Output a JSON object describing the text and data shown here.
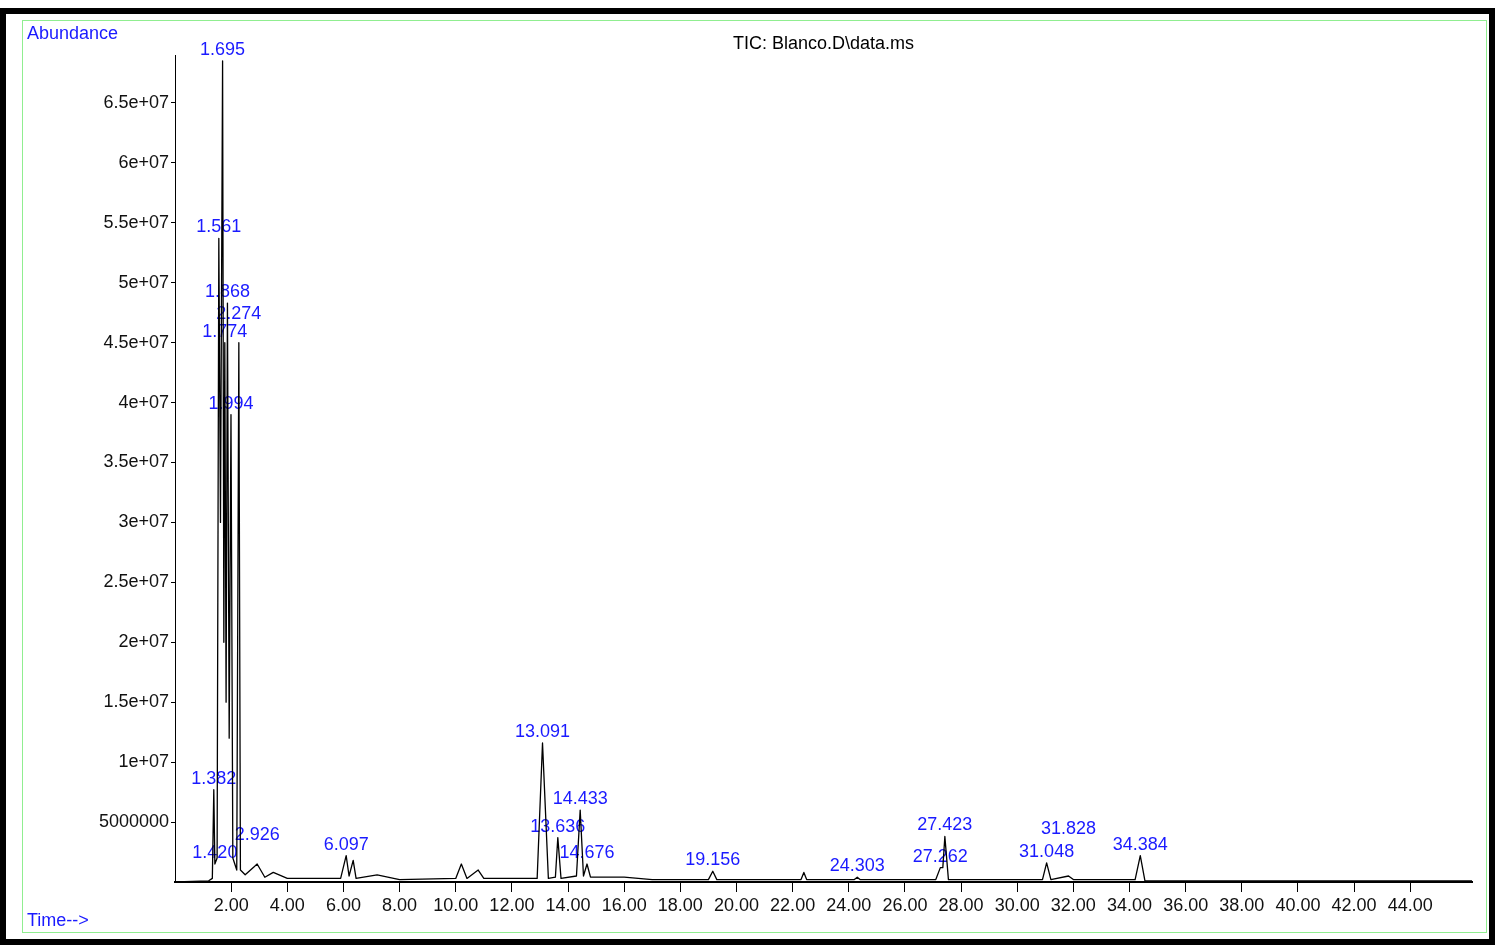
{
  "chart_data": {
    "type": "line",
    "title": "TIC: Blanco.D\\data.ms",
    "xlabel": "Time-->",
    "ylabel": "Abundance",
    "series": [
      {
        "color": "#000000",
        "x": [
          0.05,
          1.2,
          1.33,
          1.382,
          1.42,
          1.5,
          1.561,
          1.62,
          1.695,
          1.74,
          1.774,
          1.82,
          1.868,
          1.93,
          1.994,
          2.06,
          2.2,
          2.274,
          2.33,
          2.5,
          2.926,
          3.2,
          3.5,
          4.0,
          5.0,
          5.9,
          6.097,
          6.2,
          6.347,
          6.45,
          7.2,
          8.0,
          10.0,
          10.2,
          10.4,
          10.8,
          11.0,
          12.9,
          13.091,
          13.3,
          13.55,
          13.636,
          13.75,
          14.3,
          14.433,
          14.55,
          14.676,
          14.8,
          16.0,
          17.0,
          19.0,
          19.156,
          19.3,
          22.3,
          22.4,
          22.5,
          24.2,
          24.303,
          24.4,
          27.1,
          27.262,
          27.35,
          27.423,
          27.55,
          30.9,
          31.048,
          31.2,
          31.828,
          32.0,
          34.2,
          34.384,
          34.55,
          46.2
        ],
        "values": [
          0,
          100000,
          300000,
          7700000,
          1500000,
          2000000,
          53700000,
          30000000,
          68500000,
          20000000,
          45000000,
          15000000,
          48300000,
          12000000,
          39000000,
          2000000,
          1000000,
          45000000,
          1000000,
          600000,
          1500000,
          400000,
          800000,
          300000,
          300000,
          300000,
          2200000,
          500000,
          1800000,
          300000,
          600000,
          200000,
          300000,
          1500000,
          300000,
          1000000,
          300000,
          300000,
          11600000,
          300000,
          400000,
          3700000,
          300000,
          500000,
          6000000,
          500000,
          1500000,
          400000,
          400000,
          200000,
          200000,
          900000,
          200000,
          200000,
          800000,
          200000,
          200000,
          400000,
          200000,
          200000,
          1200000,
          1200000,
          3800000,
          200000,
          200000,
          1600000,
          200000,
          500000,
          200000,
          200000,
          2200000,
          100000,
          100000
        ]
      }
    ],
    "xlim": [
      0,
      46.2
    ],
    "ylim": [
      0,
      69000000
    ],
    "xticks": [
      {
        "value": 2,
        "label": "2.00"
      },
      {
        "value": 4,
        "label": "4.00"
      },
      {
        "value": 6,
        "label": "6.00"
      },
      {
        "value": 8,
        "label": "8.00"
      },
      {
        "value": 10,
        "label": "10.00"
      },
      {
        "value": 12,
        "label": "12.00"
      },
      {
        "value": 14,
        "label": "14.00"
      },
      {
        "value": 16,
        "label": "16.00"
      },
      {
        "value": 18,
        "label": "18.00"
      },
      {
        "value": 20,
        "label": "20.00"
      },
      {
        "value": 22,
        "label": "22.00"
      },
      {
        "value": 24,
        "label": "24.00"
      },
      {
        "value": 26,
        "label": "26.00"
      },
      {
        "value": 28,
        "label": "28.00"
      },
      {
        "value": 30,
        "label": "30.00"
      },
      {
        "value": 32,
        "label": "32.00"
      },
      {
        "value": 34,
        "label": "34.00"
      },
      {
        "value": 36,
        "label": "36.00"
      },
      {
        "value": 38,
        "label": "38.00"
      },
      {
        "value": 40,
        "label": "40.00"
      },
      {
        "value": 42,
        "label": "42.00"
      },
      {
        "value": 44,
        "label": "44.00"
      }
    ],
    "yticks": [
      5000000,
      {
        "value": 10000000,
        "label": "1e+07"
      },
      {
        "value": 15000000,
        "label": "1.5e+07"
      },
      {
        "value": 20000000,
        "label": "2e+07"
      },
      {
        "value": 25000000,
        "label": "2.5e+07"
      },
      {
        "value": 30000000,
        "label": "3e+07"
      },
      {
        "value": 35000000,
        "label": "3.5e+07"
      },
      {
        "value": 40000000,
        "label": "4e+07"
      },
      {
        "value": 45000000,
        "label": "4.5e+07"
      },
      {
        "value": 50000000,
        "label": "5e+07"
      },
      {
        "value": 55000000,
        "label": "5.5e+07"
      },
      {
        "value": 60000000,
        "label": "6e+07"
      },
      {
        "value": 65000000,
        "label": "6.5e+07"
      }
    ],
    "annotations": [
      {
        "text": "1.695",
        "x": 1.695,
        "y": 68500000
      },
      {
        "text": "1.561",
        "x": 1.561,
        "y": 53700000
      },
      {
        "text": "1.868",
        "x": 1.868,
        "y": 48300000
      },
      {
        "text": "1.774",
        "x": 1.774,
        "y": 45000000
      },
      {
        "text": "2.274",
        "x": 2.274,
        "y": 45000000
      },
      {
        "text": "1.994",
        "x": 1.994,
        "y": 39000000
      },
      {
        "text": "1.382",
        "x": 1.382,
        "y": 7700000
      },
      {
        "text": "1.420",
        "x": 1.42,
        "y": 1500000
      },
      {
        "text": "2.926",
        "x": 2.926,
        "y": 1500000
      },
      {
        "text": "6.097",
        "x": 6.097,
        "y": 2200000
      },
      {
        "text": "13.091",
        "x": 13.091,
        "y": 11600000
      },
      {
        "text": "14.433",
        "x": 14.433,
        "y": 6000000
      },
      {
        "text": "13.636",
        "x": 13.636,
        "y": 3700000
      },
      {
        "text": "14.676",
        "x": 14.676,
        "y": 1500000
      },
      {
        "text": "19.156",
        "x": 19.156,
        "y": 900000
      },
      {
        "text": "24.303",
        "x": 24.303,
        "y": 400000
      },
      {
        "text": "27.423",
        "x": 27.423,
        "y": 3800000
      },
      {
        "text": "27.262",
        "x": 27.262,
        "y": 1200000
      },
      {
        "text": "31.048",
        "x": 31.048,
        "y": 1600000
      },
      {
        "text": "31.828",
        "x": 31.828,
        "y": 500000
      },
      {
        "text": "34.384",
        "x": 34.384,
        "y": 2200000
      }
    ],
    "grid": false,
    "legend": false
  }
}
